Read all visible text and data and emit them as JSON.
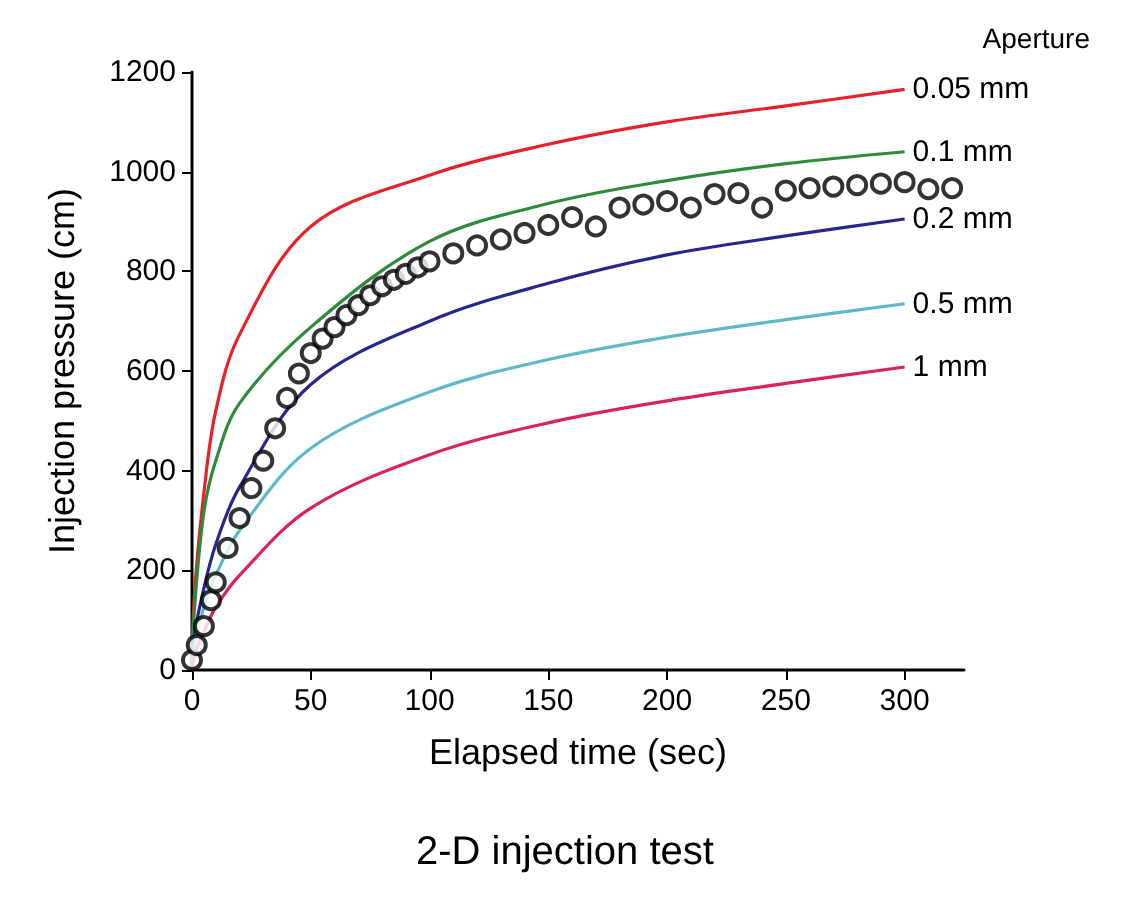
{
  "chart_data": {
    "type": "line",
    "title": "2-D injection test",
    "xlabel": "Elapsed time (sec)",
    "ylabel": "Injection pressure (cm)",
    "legend_title": "Aperture",
    "xlim": [
      0,
      325
    ],
    "ylim": [
      0,
      1200
    ],
    "xticks": [
      0,
      50,
      100,
      150,
      200,
      250,
      300
    ],
    "yticks": [
      0,
      200,
      400,
      600,
      800,
      1000,
      1200
    ],
    "grid": false,
    "legend": false,
    "marker": "none",
    "line_style": "solid",
    "x": [
      0,
      1,
      5,
      10,
      20,
      50,
      100,
      150,
      200,
      250,
      300
    ],
    "series": [
      {
        "name": "0.05 mm",
        "color": "#e8202a",
        "values": [
          0,
          150,
          355,
          520,
          673,
          890,
          993,
          1055,
          1100,
          1132,
          1165
        ]
      },
      {
        "name": "0.1 mm",
        "color": "#2e8b3a",
        "values": [
          0,
          120,
          317,
          420,
          535,
          688,
          860,
          936,
          982,
          1016,
          1040
        ]
      },
      {
        "name": "0.2 mm",
        "color": "#26268f",
        "values": [
          0,
          70,
          164,
          252,
          367,
          573,
          700,
          776,
          833,
          871,
          905
        ]
      },
      {
        "name": "0.5 mm",
        "color": "#5fb8c8",
        "values": [
          0,
          50,
          126,
          190,
          280,
          445,
          558,
          623,
          668,
          703,
          735
        ]
      },
      {
        "name": "1 mm",
        "color": "#d8245a",
        "values": [
          0,
          30,
          76,
          126,
          190,
          325,
          432,
          496,
          540,
          575,
          608
        ]
      },
      {
        "type": "scatter",
        "marker": "circle",
        "color": "#000000",
        "x": [
          0,
          2,
          5,
          8,
          10,
          15,
          20,
          25,
          30,
          35,
          40,
          45,
          50,
          55,
          60,
          65,
          70,
          75,
          80,
          85,
          90,
          95,
          100,
          110,
          120,
          130,
          140,
          150,
          160,
          170,
          180,
          190,
          200,
          210,
          220,
          230,
          240,
          250,
          260,
          270,
          280,
          290,
          300,
          310,
          320
        ],
        "values": [
          20,
          50,
          88,
          140,
          176,
          245,
          305,
          365,
          420,
          485,
          546,
          595,
          636,
          665,
          688,
          712,
          732,
          752,
          770,
          783,
          795,
          808,
          820,
          836,
          852,
          864,
          877,
          893,
          909,
          890,
          928,
          934,
          941,
          928,
          955,
          957,
          928,
          962,
          967,
          970,
          973,
          976,
          979,
          965,
          967
        ]
      }
    ]
  }
}
